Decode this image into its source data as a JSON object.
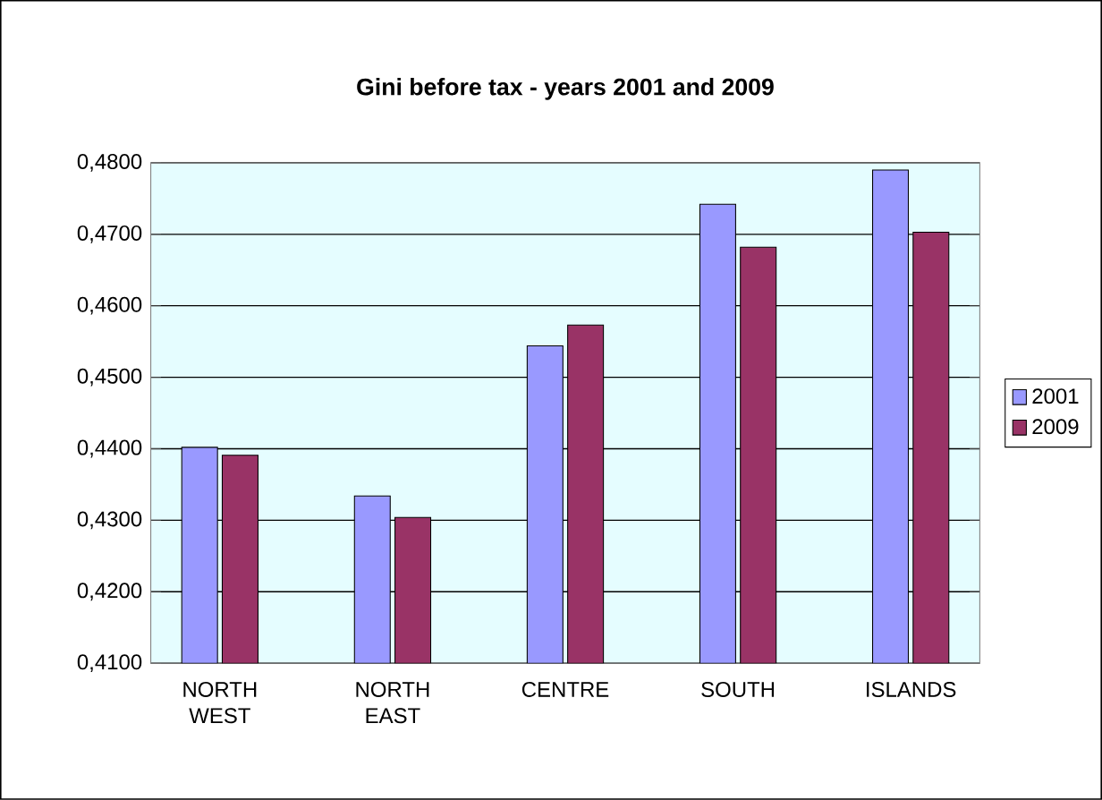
{
  "chart_data": {
    "type": "bar",
    "title": "Gini before tax - years 2001 and 2009",
    "categories": [
      "NORTH WEST",
      "NORTH EAST",
      "CENTRE",
      "SOUTH",
      "ISLANDS"
    ],
    "series": [
      {
        "name": "2001",
        "color": "#9999ff",
        "values": [
          0.4402,
          0.4334,
          0.4544,
          0.4742,
          0.479
        ]
      },
      {
        "name": "2009",
        "color": "#993366",
        "values": [
          0.4391,
          0.4304,
          0.4573,
          0.4682,
          0.4703
        ]
      }
    ],
    "ylim": [
      0.41,
      0.48
    ],
    "yticks": [
      {
        "value": 0.41,
        "label": "0,4100"
      },
      {
        "value": 0.42,
        "label": "0,4200"
      },
      {
        "value": 0.43,
        "label": "0,4300"
      },
      {
        "value": 0.44,
        "label": "0,4400"
      },
      {
        "value": 0.45,
        "label": "0,4500"
      },
      {
        "value": 0.46,
        "label": "0,4600"
      },
      {
        "value": 0.47,
        "label": "0,4700"
      },
      {
        "value": 0.48,
        "label": "0,4800"
      }
    ],
    "grid": "y",
    "legend": "right"
  }
}
